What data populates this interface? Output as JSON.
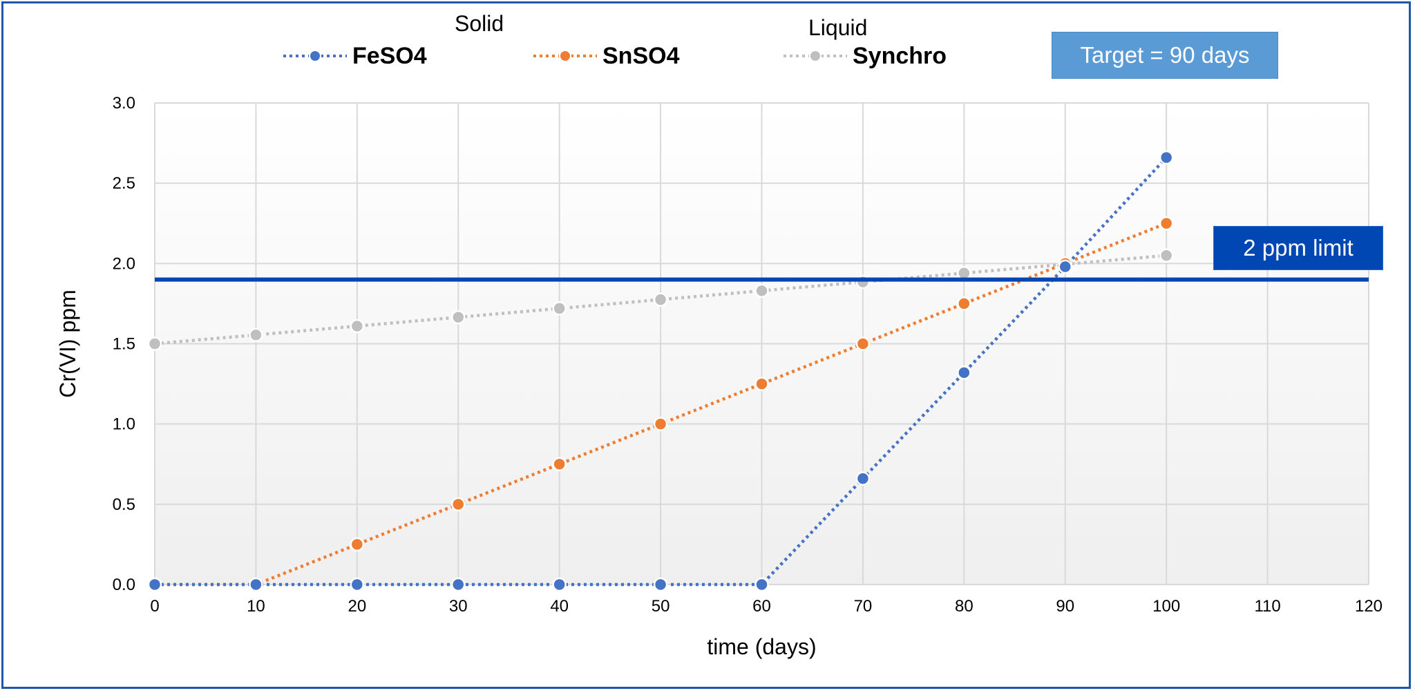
{
  "legend": {
    "group_solid": "Solid",
    "group_liquid": "Liquid"
  },
  "annotations": {
    "target": "Target = 90 days",
    "limit": "2 ppm limit"
  },
  "colors": {
    "feso4": "#4472c4",
    "snso4": "#ed7d31",
    "synchro": "#bfbfbf",
    "limit_line": "#0047b3",
    "frame": "#1f56a8"
  },
  "chart_data": {
    "type": "line",
    "xlabel": "time (days)",
    "ylabel": "Cr(VI) ppm",
    "xlim": [
      0,
      120
    ],
    "ylim": [
      0,
      3
    ],
    "x_ticks": [
      "0",
      "10",
      "20",
      "30",
      "40",
      "50",
      "60",
      "70",
      "80",
      "90",
      "100",
      "110",
      "120"
    ],
    "y_ticks": [
      "0.0",
      "0.5",
      "1.0",
      "1.5",
      "2.0",
      "2.5",
      "3.0"
    ],
    "x": [
      0,
      10,
      20,
      30,
      40,
      50,
      60,
      70,
      80,
      90,
      100
    ],
    "series": [
      {
        "name": "FeSO4",
        "group": "Solid",
        "values": [
          0,
          0,
          0,
          0,
          0,
          0,
          0,
          0.66,
          1.32,
          1.98,
          2.66
        ]
      },
      {
        "name": "SnSO4",
        "group": "Solid",
        "values": [
          0,
          0,
          0.25,
          0.5,
          0.75,
          1.0,
          1.25,
          1.5,
          1.75,
          2.0,
          2.25
        ]
      },
      {
        "name": "Synchro",
        "group": "Liquid",
        "values": [
          1.5,
          1.555,
          1.61,
          1.665,
          1.72,
          1.775,
          1.83,
          1.885,
          1.94,
          1.995,
          2.05
        ]
      }
    ],
    "reference_line": {
      "y": 1.9
    },
    "grid": true,
    "legend_position": "top"
  }
}
